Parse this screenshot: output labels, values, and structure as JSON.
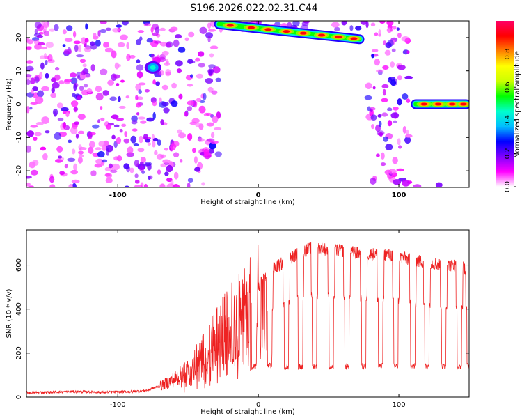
{
  "title": "S196.2026.022.02.31.C44",
  "chart_data": [
    {
      "type": "heatmap",
      "panel": "top",
      "xlabel": "Height of straight line (km)",
      "ylabel": "Frequency (Hz)",
      "xlim": [
        -165,
        150
      ],
      "ylim": [
        -25,
        25
      ],
      "x_ticks": [
        "-100",
        "0",
        "100"
      ],
      "y_ticks": [
        "-20",
        "-10",
        "0",
        "10",
        "20"
      ],
      "colorbar": {
        "label": "Normalized spectral amplitude",
        "range": [
          0,
          1
        ],
        "ticks": [
          "0.0",
          "0.2",
          "0.4",
          "0.6",
          "0.8"
        ],
        "colormap": [
          "#ffffff",
          "#ff00ff",
          "#7f00ff",
          "#0000ff",
          "#00bfff",
          "#00ffcc",
          "#00ff00",
          "#ccff00",
          "#ffff00",
          "#ff8000",
          "#ff0000",
          "#ff0066"
        ]
      },
      "features": [
        {
          "name": "line-A",
          "x_range": [
            -28,
            72
          ],
          "y_start": 24,
          "y_end": 19.5,
          "peaks_x": [
            -20,
            -5,
            7,
            20,
            32,
            45,
            57,
            68
          ]
        },
        {
          "name": "line-B",
          "x_range": [
            112,
            148
          ],
          "y_start": 0,
          "y_end": 0,
          "peaks_x": [
            118,
            128,
            138,
            146
          ]
        },
        {
          "name": "blob",
          "x": -75,
          "y": 11,
          "amp": 0.45
        }
      ]
    },
    {
      "type": "line",
      "panel": "bottom",
      "xlabel": "Height of straight line (km)",
      "ylabel": "SNR (10 * v/v)",
      "xlim": [
        -165,
        150
      ],
      "ylim": [
        0,
        760
      ],
      "x_ticks": [
        "-100",
        "0",
        "100"
      ],
      "y_ticks": [
        "0",
        "200",
        "400",
        "600"
      ],
      "series": [
        {
          "name": "SNR",
          "color": "#ee2222",
          "x": [
            -165,
            -150,
            -130,
            -110,
            -90,
            -80,
            -70,
            -60,
            -50,
            -40,
            -30,
            -20,
            -10,
            0,
            10,
            20,
            30,
            40,
            50,
            60,
            70,
            80,
            90,
            100,
            110,
            120,
            130,
            140,
            150
          ],
          "y": [
            20,
            22,
            25,
            22,
            25,
            30,
            50,
            80,
            120,
            200,
            280,
            360,
            420,
            500,
            580,
            620,
            660,
            680,
            670,
            665,
            655,
            650,
            650,
            640,
            620,
            615,
            600,
            600,
            580
          ]
        }
      ],
      "dropouts_x": [
        -3,
        8,
        20,
        30,
        40,
        52,
        63,
        75,
        87,
        98,
        110,
        120,
        132,
        143,
        150
      ],
      "dropout_level": 140
    }
  ]
}
